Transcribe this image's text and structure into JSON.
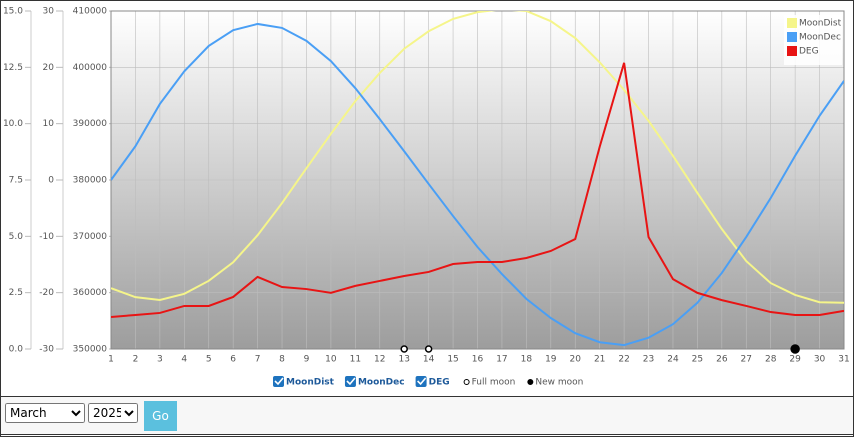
{
  "chart_data": {
    "type": "line",
    "x": [
      1,
      2,
      3,
      4,
      5,
      6,
      7,
      8,
      9,
      10,
      11,
      12,
      13,
      14,
      15,
      16,
      17,
      18,
      19,
      20,
      21,
      22,
      23,
      24,
      25,
      26,
      27,
      28,
      29,
      30,
      31
    ],
    "xlim": [
      1,
      31
    ],
    "ylim": [
      0,
      15
    ],
    "yticks": [
      {
        "value": 15,
        "label": "15.0"
      },
      12.5,
      {
        "value": 10,
        "label": "10.0"
      },
      7.5,
      {
        "value": 5,
        "label": "5.0"
      },
      2.5,
      {
        "value": 0,
        "label": "0.0"
      }
    ],
    "y2lim": [
      -30,
      30
    ],
    "y2ticks": [
      30,
      20,
      10,
      0,
      -10,
      -20,
      -30
    ],
    "y3lim": [
      350000,
      410000
    ],
    "y3ticks": [
      410000,
      400000,
      390000,
      380000,
      370000,
      360000,
      350000
    ],
    "grid": true,
    "legend": "top-right",
    "series": [
      {
        "name": "MoonDist",
        "color": "#f5f58a",
        "axis": "y3",
        "values": [
          360800,
          359200,
          358700,
          359800,
          362100,
          365400,
          370200,
          375900,
          382100,
          388200,
          394000,
          399000,
          403300,
          406400,
          408600,
          409800,
          410300,
          410000,
          408200,
          405200,
          400900,
          396000,
          390500,
          384300,
          377700,
          371300,
          365600,
          361700,
          359600,
          358300,
          358200
        ]
      },
      {
        "name": "MoonDec",
        "color": "#4a9ff5",
        "axis": "y2",
        "values": [
          0,
          6.0,
          13.5,
          19.3,
          23.8,
          26.6,
          27.7,
          27.0,
          24.7,
          21.1,
          16.3,
          10.8,
          5.1,
          -0.7,
          -6.4,
          -11.9,
          -16.7,
          -21.1,
          -24.5,
          -27.2,
          -28.8,
          -29.3,
          -28.0,
          -25.6,
          -21.8,
          -16.5,
          -10.1,
          -3.2,
          4.3,
          11.4,
          17.6
        ]
      },
      {
        "name": "DEG",
        "color": "#e81414",
        "axis": "y",
        "values": [
          1.42,
          1.51,
          1.6,
          1.91,
          1.91,
          2.31,
          3.2,
          2.75,
          2.66,
          2.49,
          2.8,
          3.02,
          3.24,
          3.42,
          3.77,
          3.86,
          3.86,
          4.04,
          4.35,
          4.88,
          8.97,
          12.7,
          4.97,
          3.1,
          2.49,
          2.17,
          1.91,
          1.64,
          1.51,
          1.51,
          1.69
        ]
      }
    ],
    "markers": [
      {
        "name": "Full moon",
        "color": "#ffffff",
        "days": [
          13,
          14
        ]
      },
      {
        "name": "New moon",
        "color": "#000000",
        "days": [
          29
        ]
      }
    ]
  },
  "controls": {
    "month": "March",
    "year": "2025",
    "button": "Go"
  }
}
